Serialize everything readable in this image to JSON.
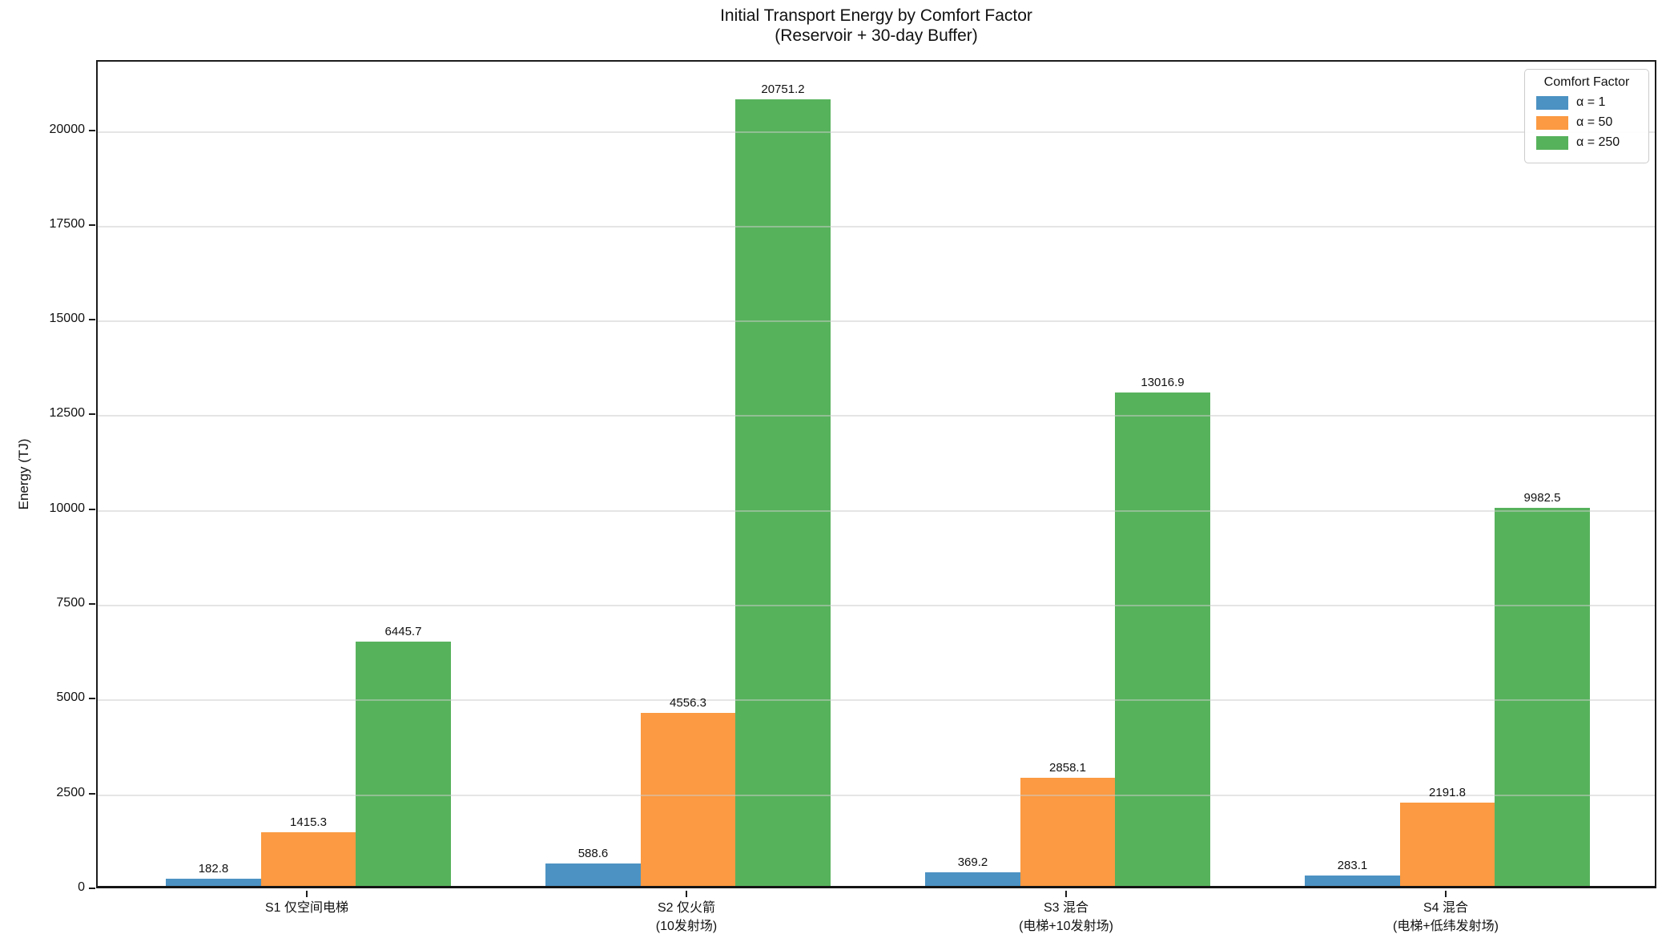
{
  "chart_data": {
    "type": "bar",
    "title": "Initial Transport Energy by Comfort Factor\n(Reservoir + 30-day Buffer)",
    "title_line1": "Initial Transport Energy by Comfort Factor",
    "title_line2": "(Reservoir + 30-day Buffer)",
    "xlabel": "",
    "ylabel": "Energy (TJ)",
    "categories": [
      "S1 仅空间电梯",
      "S2 仅火箭",
      "S3 混合",
      "S4 混合"
    ],
    "category_sublabels": [
      "",
      "(10发射场)",
      "(电梯+10发射场)",
      "(电梯+低纬发射场)"
    ],
    "series": [
      {
        "name": "α = 1",
        "color": "#4C92C3",
        "values": [
          182.8,
          588.6,
          369.2,
          283.1
        ]
      },
      {
        "name": "α = 50",
        "color": "#FB9A42",
        "values": [
          1415.3,
          4556.3,
          2858.1,
          2191.8
        ]
      },
      {
        "name": "α = 250",
        "color": "#57B25C",
        "values": [
          6445.7,
          20751.2,
          13016.9,
          9982.5
        ]
      }
    ],
    "legend": {
      "title": "Comfort Factor",
      "position": "upper right"
    },
    "yticks": [
      0,
      2500,
      5000,
      7500,
      10000,
      12500,
      15000,
      17500,
      20000
    ],
    "ylim": [
      0,
      21850
    ],
    "grid": true,
    "bar_value_labels": true
  }
}
